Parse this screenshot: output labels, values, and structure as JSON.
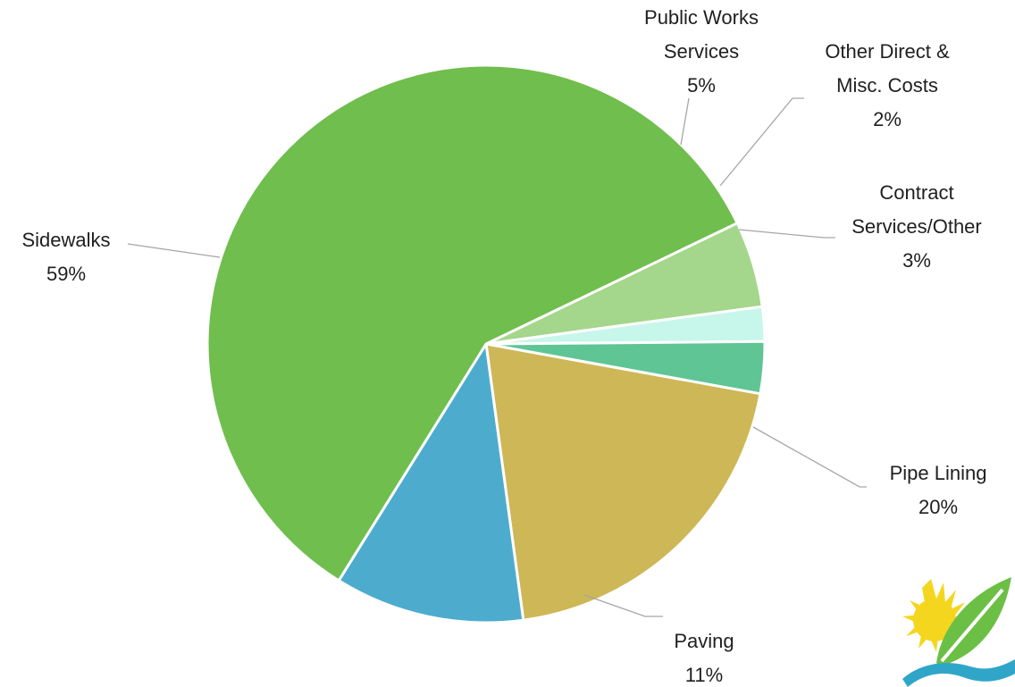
{
  "chart_data": {
    "type": "pie",
    "slices": [
      {
        "label_lines": [
          "Public Works",
          "Services"
        ],
        "pct_label": "5%",
        "value": 5,
        "color": "#a4d68b"
      },
      {
        "label_lines": [
          "Other Direct &",
          "Misc. Costs"
        ],
        "pct_label": "2%",
        "value": 2,
        "color": "#c7f7ea"
      },
      {
        "label_lines": [
          "Contract",
          "Services/Other"
        ],
        "pct_label": "3%",
        "value": 3,
        "color": "#5fc595"
      },
      {
        "label_lines": [
          "Pipe Lining"
        ],
        "pct_label": "20%",
        "value": 20,
        "color": "#ceb757"
      },
      {
        "label_lines": [
          "Paving"
        ],
        "pct_label": "11%",
        "value": 11,
        "color": "#4daccd"
      },
      {
        "label_lines": [
          "Sidewalks"
        ],
        "pct_label": "59%",
        "value": 59,
        "color": "#70be4d"
      }
    ],
    "legend": "none",
    "data_labels": "outside-with-leader-lines"
  },
  "logo": {
    "icon": "sun-leaf-wave-logo-icon",
    "colors": {
      "sun": "#f5d61f",
      "leaf": "#6cbf45",
      "wave": "#2fa6c8"
    }
  }
}
